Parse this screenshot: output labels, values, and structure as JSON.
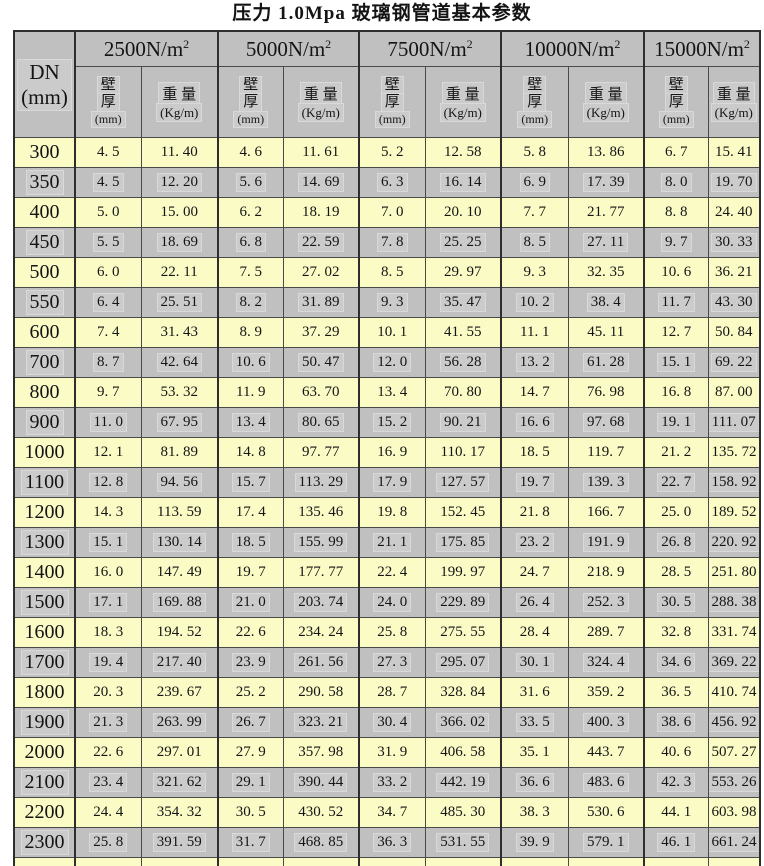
{
  "page_title": "压力 1.0Mpa 玻璃钢管道基本参数",
  "table": {
    "dn_header": {
      "label": "DN",
      "unit": "(mm)"
    },
    "column_groups": [
      {
        "label": "2500N/m",
        "exponent": "2"
      },
      {
        "label": "5000N/m",
        "exponent": "2"
      },
      {
        "label": "7500N/m",
        "exponent": "2"
      },
      {
        "label": "10000N/m",
        "exponent": "2"
      },
      {
        "label": "15000N/m",
        "exponent": "2"
      }
    ],
    "sub_headers": {
      "thickness_line1": "壁",
      "thickness_line2": "厚",
      "thickness_unit": "(mm)",
      "weight_label": "重 量",
      "weight_unit": "(Kg/m)"
    },
    "rows": [
      {
        "dn": "300",
        "cells": [
          "4. 5",
          "11. 40",
          "4. 6",
          "11. 61",
          "5. 2",
          "12. 58",
          "5. 8",
          "13. 86",
          "6. 7",
          "15. 41"
        ]
      },
      {
        "dn": "350",
        "cells": [
          "4. 5",
          "12. 20",
          "5. 6",
          "14. 69",
          "6. 3",
          "16. 14",
          "6. 9",
          "17. 39",
          "8. 0",
          "19. 70"
        ]
      },
      {
        "dn": "400",
        "cells": [
          "5. 0",
          "15. 00",
          "6. 2",
          "18. 19",
          "7. 0",
          "20. 10",
          "7. 7",
          "21. 77",
          "8. 8",
          "24. 40"
        ]
      },
      {
        "dn": "450",
        "cells": [
          "5. 5",
          "18. 69",
          "6. 8",
          "22. 59",
          "7. 8",
          "25. 25",
          "8. 5",
          "27. 11",
          "9. 7",
          "30. 33"
        ]
      },
      {
        "dn": "500",
        "cells": [
          "6. 0",
          "22. 11",
          "7. 5",
          "27. 02",
          "8. 5",
          "29. 97",
          "9. 3",
          "32. 35",
          "10. 6",
          "36. 21"
        ]
      },
      {
        "dn": "550",
        "cells": [
          "6. 4",
          "25. 51",
          "8. 2",
          "31. 89",
          "9. 3",
          "35. 47",
          "10. 2",
          "38. 4",
          "11. 7",
          "43. 30"
        ]
      },
      {
        "dn": "600",
        "cells": [
          "7. 4",
          "31. 43",
          "8. 9",
          "37. 29",
          "10. 1",
          "41. 55",
          "11. 1",
          "45. 11",
          "12. 7",
          "50. 84"
        ]
      },
      {
        "dn": "700",
        "cells": [
          "8. 7",
          "42. 64",
          "10. 6",
          "50. 47",
          "12. 0",
          "56. 28",
          "13. 2",
          "61. 28",
          "15. 1",
          "69. 22"
        ]
      },
      {
        "dn": "800",
        "cells": [
          "9. 7",
          "53. 32",
          "11. 9",
          "63. 70",
          "13. 4",
          "70. 80",
          "14. 7",
          "76. 98",
          "16. 8",
          "87. 00"
        ]
      },
      {
        "dn": "900",
        "cells": [
          "11. 0",
          "67. 95",
          "13. 4",
          "80. 65",
          "15. 2",
          "90. 21",
          "16. 6",
          "97. 68",
          "19. 1",
          "111. 07"
        ]
      },
      {
        "dn": "1000",
        "cells": [
          "12. 1",
          "81. 89",
          "14. 8",
          "97. 77",
          "16. 9",
          "110. 17",
          "18. 5",
          "119. 7",
          "21. 2",
          "135. 72"
        ]
      },
      {
        "dn": "1100",
        "cells": [
          "12. 8",
          "94. 56",
          "15. 7",
          "113. 29",
          "17. 9",
          "127. 57",
          "19. 7",
          "139. 3",
          "22. 7",
          "158. 92"
        ]
      },
      {
        "dn": "1200",
        "cells": [
          "14. 3",
          "113. 59",
          "17. 4",
          "135. 46",
          "19. 8",
          "152. 45",
          "21. 8",
          "166. 7",
          "25. 0",
          "189. 52"
        ]
      },
      {
        "dn": "1300",
        "cells": [
          "15. 1",
          "130. 14",
          "18. 5",
          "155. 99",
          "21. 1",
          "175. 85",
          "23. 2",
          "191. 9",
          "26. 8",
          "220. 92"
        ]
      },
      {
        "dn": "1400",
        "cells": [
          "16. 0",
          "147. 49",
          "19. 7",
          "177. 77",
          "22. 4",
          "199. 97",
          "24. 7",
          "218. 9",
          "28. 5",
          "251. 80"
        ]
      },
      {
        "dn": "1500",
        "cells": [
          "17. 1",
          "169. 88",
          "21. 0",
          "203. 74",
          "24. 0",
          "229. 89",
          "26. 4",
          "252. 3",
          "30. 5",
          "288. 38"
        ]
      },
      {
        "dn": "1600",
        "cells": [
          "18. 3",
          "194. 52",
          "22. 6",
          "234. 24",
          "25. 8",
          "275. 55",
          "28. 4",
          "289. 7",
          "32. 8",
          "331. 74"
        ]
      },
      {
        "dn": "1700",
        "cells": [
          "19. 4",
          "217. 40",
          "23. 9",
          "261. 56",
          "27. 3",
          "295. 07",
          "30. 1",
          "324. 4",
          "34. 6",
          "369. 22"
        ]
      },
      {
        "dn": "1800",
        "cells": [
          "20. 3",
          "239. 67",
          "25. 2",
          "290. 58",
          "28. 7",
          "328. 84",
          "31. 6",
          "359. 2",
          "36. 5",
          "410. 74"
        ]
      },
      {
        "dn": "1900",
        "cells": [
          "21. 3",
          "263. 99",
          "26. 7",
          "323. 21",
          "30. 4",
          "366. 02",
          "33. 5",
          "400. 3",
          "38. 6",
          "456. 92"
        ]
      },
      {
        "dn": "2000",
        "cells": [
          "22. 6",
          "297. 01",
          "27. 9",
          "357. 98",
          "31. 9",
          "406. 58",
          "35. 1",
          "443. 7",
          "40. 6",
          "507. 27"
        ]
      },
      {
        "dn": "2100",
        "cells": [
          "23. 4",
          "321. 62",
          "29. 1",
          "390. 44",
          "33. 2",
          "442. 19",
          "36. 6",
          "483. 6",
          "42. 3",
          "553. 26"
        ]
      },
      {
        "dn": "2200",
        "cells": [
          "24. 4",
          "354. 32",
          "30. 5",
          "430. 52",
          "34. 7",
          "485. 30",
          "38. 3",
          "530. 6",
          "44. 1",
          "603. 98"
        ]
      },
      {
        "dn": "2300",
        "cells": [
          "25. 8",
          "391. 59",
          "31. 7",
          "468. 85",
          "36. 3",
          "531. 55",
          "39. 9",
          "579. 1",
          "46. 1",
          "661. 24"
        ]
      }
    ]
  },
  "colors": {
    "row_yellow": "#fbfbc6",
    "row_gray": "#c0c0c0",
    "header_gray": "#c0c0c0",
    "grid_line": "#4a4a4a",
    "outer_border": "#2e2e2e",
    "highlight_box": "#cbcbcb"
  }
}
